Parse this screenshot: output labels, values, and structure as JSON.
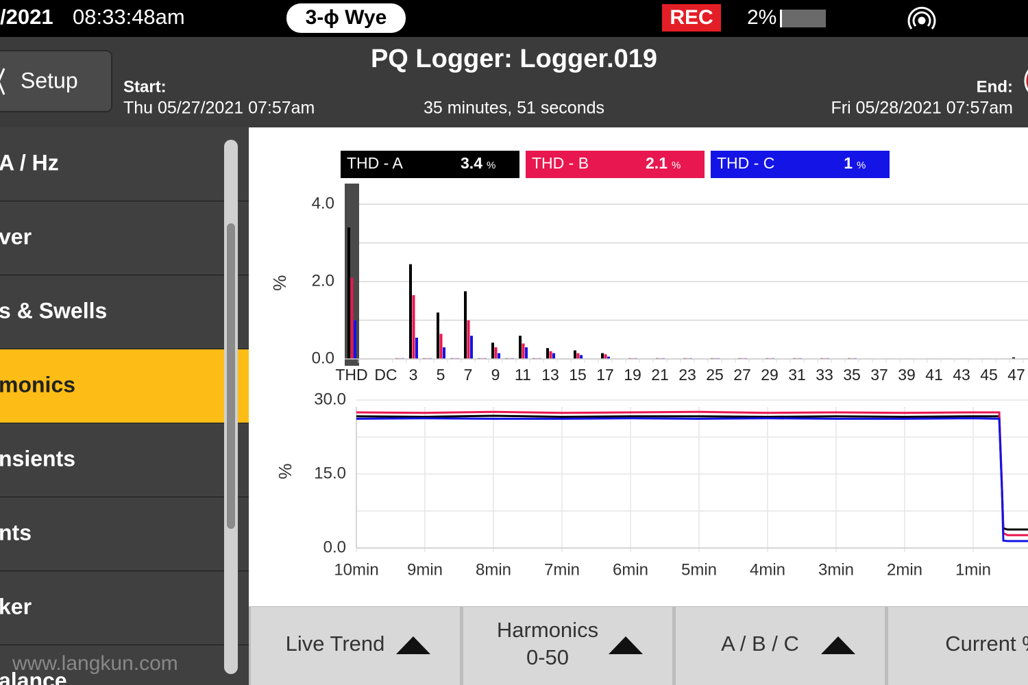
{
  "status_bar": {
    "date": "/2021",
    "time": "08:33:48am",
    "wiring": "3-ϕ Wye",
    "rec": "REC",
    "battery": "2%"
  },
  "header": {
    "back_button": "Setup",
    "title": "PQ Logger: Logger.019",
    "start_label": "Start:",
    "start": "Thu 05/27/2021 07:57am",
    "duration": "35 minutes, 51 seconds",
    "end_label": "End:",
    "end": "Fri 05/28/2021 07:57am"
  },
  "sidebar": {
    "items": [
      "A / Hz",
      "ver",
      "s & Swells",
      "monics",
      "nsients",
      "nts",
      "ker",
      "alance"
    ],
    "selected": 3
  },
  "watermark": "www.langkun.com",
  "buttons": [
    {
      "label": "Live Trend",
      "menu": true
    },
    {
      "label": "Harmonics",
      "sublabel": "0-50",
      "menu": true
    },
    {
      "label": "A / B / C",
      "menu": true
    },
    {
      "label": "Current %",
      "menu": false
    }
  ],
  "chart_data": [
    {
      "type": "bar",
      "ylabel": "%",
      "unit": "%",
      "categories": [
        "THD",
        "DC",
        null,
        "3",
        null,
        "5",
        null,
        "7",
        null,
        "9",
        null,
        "11",
        null,
        "13",
        null,
        "15",
        null,
        "17",
        null,
        "19",
        null,
        "21",
        null,
        "23",
        null,
        "25",
        null,
        "27",
        null,
        "29",
        null,
        "31",
        null,
        "33",
        null,
        "35",
        null,
        "37",
        null,
        "39",
        null,
        "41",
        null,
        "43",
        null,
        "45",
        null,
        "47"
      ],
      "series": [
        {
          "name": "THD - A",
          "color": "#000000",
          "values": [
            3.4,
            0,
            0.02,
            2.45,
            0.02,
            1.2,
            0.02,
            1.75,
            0.02,
            0.42,
            0.02,
            0.6,
            0.02,
            0.28,
            0.01,
            0.22,
            0.01,
            0.15,
            0,
            0.02,
            0,
            0.02,
            0,
            0.02,
            0,
            0.02,
            0,
            0.02,
            0,
            0.02,
            0,
            0.02,
            0,
            0.02,
            0,
            0.02,
            0,
            0,
            0,
            0,
            0,
            0,
            0,
            0,
            0,
            0,
            0,
            0.04
          ]
        },
        {
          "name": "THD - B",
          "color": "#e8174f",
          "values": [
            2.1,
            0,
            0.02,
            1.65,
            0.02,
            0.65,
            0.02,
            1.0,
            0.02,
            0.3,
            0.02,
            0.4,
            0.02,
            0.2,
            0.01,
            0.15,
            0.01,
            0.12,
            0,
            0.02,
            0,
            0.02,
            0,
            0.02,
            0,
            0.02,
            0,
            0.02,
            0,
            0.02,
            0,
            0.02,
            0,
            0.02,
            0,
            0.02,
            0,
            0,
            0,
            0,
            0,
            0,
            0,
            0,
            0,
            0,
            0,
            0
          ]
        },
        {
          "name": "THD - C",
          "color": "#1414e6",
          "values": [
            1.0,
            0,
            0.02,
            0.55,
            0.02,
            0.3,
            0.02,
            0.6,
            0.02,
            0.15,
            0.02,
            0.3,
            0.02,
            0.15,
            0.01,
            0.1,
            0.01,
            0.06,
            0,
            0.02,
            0,
            0.02,
            0,
            0.02,
            0,
            0.02,
            0,
            0.02,
            0,
            0.02,
            0,
            0.02,
            0,
            0.02,
            0,
            0.02,
            0,
            0,
            0,
            0,
            0,
            0,
            0,
            0,
            0,
            0,
            0,
            0
          ]
        }
      ],
      "ylim": [
        0,
        4.5
      ],
      "yticks": [
        {
          "value": 0,
          "label": "0.0"
        },
        {
          "value": 2,
          "label": "2.0"
        },
        {
          "value": 4,
          "label": "4.0"
        }
      ],
      "minor_yticks": [
        1,
        3
      ],
      "highlight": 0,
      "grid": true
    },
    {
      "type": "line",
      "ylabel": "%",
      "x": [
        10,
        9,
        8,
        7,
        6,
        5,
        4,
        3,
        2,
        1,
        0.62,
        0.58,
        0.56,
        0.5,
        0.45,
        0.3,
        0.2
      ],
      "series": [
        {
          "name": "A",
          "color": "#000000",
          "values": [
            26.7,
            26.6,
            26.8,
            26.6,
            26.7,
            26.7,
            26.6,
            26.7,
            26.6,
            26.7,
            26.7,
            12,
            4,
            3.75,
            3.75,
            3.75,
            3.75
          ]
        },
        {
          "name": "B",
          "color": "#e8174f",
          "values": [
            27.5,
            27.4,
            27.6,
            27.4,
            27.5,
            27.6,
            27.4,
            27.5,
            27.4,
            27.5,
            27.5,
            12.5,
            3,
            2.6,
            2.6,
            2.6,
            2.6
          ]
        },
        {
          "name": "C",
          "color": "#1414e6",
          "values": [
            26.2,
            26.3,
            26.2,
            26.2,
            26.3,
            26.2,
            26.3,
            26.2,
            26.2,
            26.3,
            26.2,
            11.8,
            1.5,
            1.4,
            1.4,
            1.4,
            1.4
          ]
        }
      ],
      "xlim": [
        10,
        0
      ],
      "xticks": [
        {
          "value": 10,
          "label": "10min"
        },
        {
          "value": 9,
          "label": "9min"
        },
        {
          "value": 8,
          "label": "8min"
        },
        {
          "value": 7,
          "label": "7min"
        },
        {
          "value": 6,
          "label": "6min"
        },
        {
          "value": 5,
          "label": "5min"
        },
        {
          "value": 4,
          "label": "4min"
        },
        {
          "value": 3,
          "label": "3min"
        },
        {
          "value": 2,
          "label": "2min"
        },
        {
          "value": 1,
          "label": "1min"
        },
        0
      ],
      "ylim": [
        0,
        30
      ],
      "yticks": [
        {
          "value": 0,
          "label": "0.0"
        },
        {
          "value": 15,
          "label": "15.0"
        },
        {
          "value": 30,
          "label": "30.0"
        }
      ],
      "minor_yticks": [
        7.5,
        22.5
      ],
      "grid": true
    }
  ]
}
